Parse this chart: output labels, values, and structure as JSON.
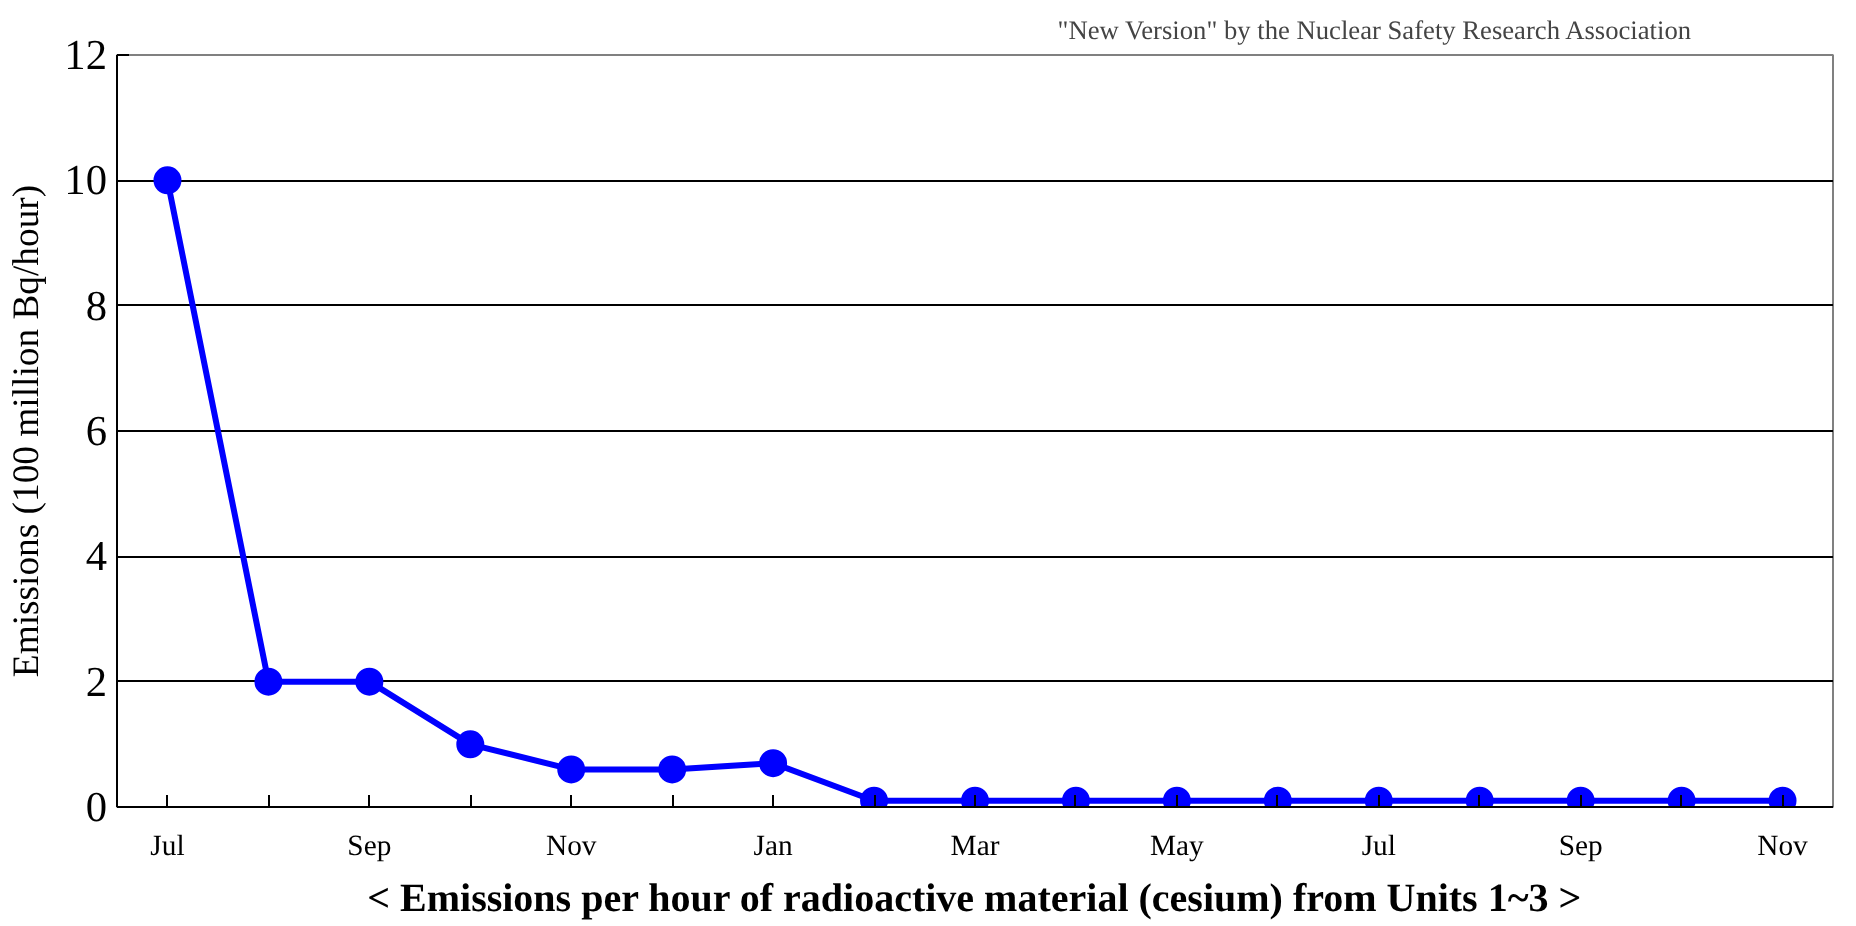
{
  "chart_data": {
    "type": "line",
    "xlabel": "< Emissions per hour of radioactive material (cesium) from Units 1~3 >",
    "ylabel": "Emissions (100 million Bq/hour)",
    "annotations": [
      "\"New Version\" by the Nuclear Safety Research Association"
    ],
    "categories": [
      "Jul",
      null,
      "Sep",
      null,
      "Nov",
      null,
      "Jan",
      null,
      "Mar",
      null,
      "May",
      null,
      "Jul",
      null,
      "Sep",
      null,
      "Nov"
    ],
    "series": [
      {
        "color": "#0000ff",
        "values": [
          10,
          2,
          2,
          1,
          0.6,
          0.6,
          0.7,
          0.1,
          0.1,
          0.1,
          0.1,
          0.1,
          0.1,
          0.1,
          0.1,
          0.1,
          0.1
        ]
      }
    ],
    "ylim": [
      0,
      12
    ],
    "yticks": [
      0,
      2,
      4,
      6,
      8,
      10,
      12
    ],
    "grid": "y",
    "marker": "circle",
    "line_style": "solid"
  }
}
